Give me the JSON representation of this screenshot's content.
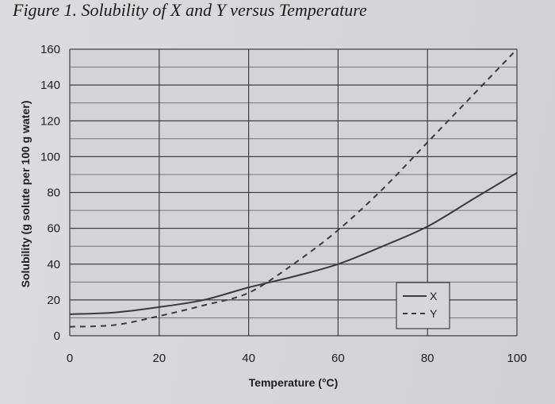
{
  "figure": {
    "title": "Figure 1. Solubility of X and Y versus Temperature"
  },
  "chart_data": {
    "type": "line",
    "title": "Figure 1. Solubility of X and Y versus Temperature",
    "xlabel": "Temperature (°C)",
    "ylabel": "Solubility (g solute per 100 g water)",
    "xlim": [
      0,
      100
    ],
    "ylim": [
      0,
      160
    ],
    "x_ticks": [
      0,
      20,
      40,
      60,
      80,
      100
    ],
    "y_ticks": [
      0,
      20,
      40,
      60,
      80,
      100,
      120,
      140,
      160
    ],
    "grid": true,
    "legend_position": "bottom-right",
    "series": [
      {
        "name": "X",
        "style": "solid",
        "color": "#3a3a3f",
        "x": [
          0,
          10,
          20,
          30,
          40,
          50,
          60,
          70,
          80,
          90,
          100
        ],
        "y": [
          12,
          13,
          16,
          20,
          27,
          33,
          40,
          50,
          61,
          76,
          91
        ]
      },
      {
        "name": "Y",
        "style": "dashed",
        "color": "#3a3a3f",
        "x": [
          0,
          10,
          20,
          30,
          40,
          50,
          60,
          70,
          80,
          90,
          100
        ],
        "y": [
          5,
          6,
          11,
          17,
          24,
          40,
          59,
          82,
          108,
          134,
          160
        ]
      }
    ]
  }
}
